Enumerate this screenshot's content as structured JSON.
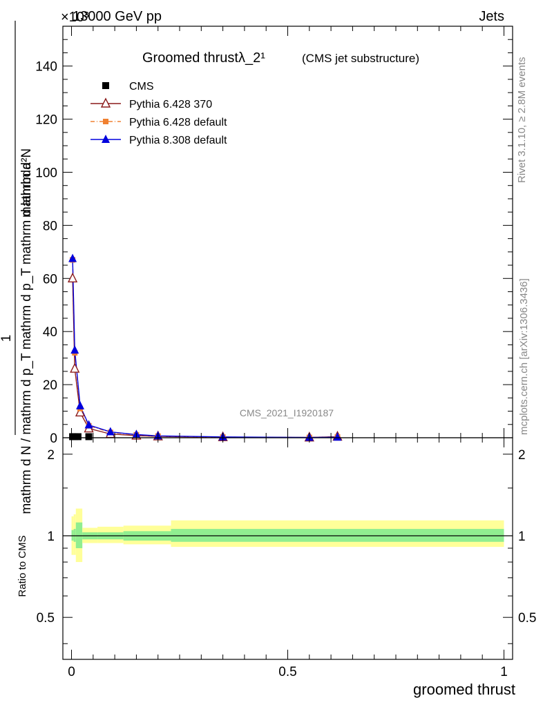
{
  "header": {
    "left": "13000 GeV pp",
    "right": "Jets",
    "exponent": "×10³"
  },
  "side_labels": {
    "rivet": "Rivet 3.1.10, ≥ 2.8M events",
    "mcplots": "mcplots.cern.ch [arXiv:1306.3436]"
  },
  "watermark": "CMS_2021_I1920187",
  "chart_data": [
    {
      "type": "line",
      "title": "Groomed thrustλ_2¹",
      "subtitle": "(CMS jet substructure)",
      "ylabel_numerator": "mathrm d²N",
      "ylabel_frac_num": "1",
      "ylabel_denominator": "mathrm d N / mathrm d p_T mathrm d p_T mathrm d lambda",
      "ylabel_top": "mathrm d²N",
      "ylabel_bottom": "mathrm d p_T mathrm d lambda",
      "ylim": [
        0,
        155
      ],
      "xlim": [
        -0.02,
        1.02
      ],
      "yticks": [
        0,
        20,
        40,
        60,
        80,
        100,
        120,
        140
      ],
      "legend_position": "top-left",
      "series": [
        {
          "name": "CMS",
          "color": "#000000",
          "marker": "square",
          "x": [
            0.0025,
            0.0075,
            0.015,
            0.04
          ],
          "y": [
            0.4,
            0.4,
            0.4,
            0.4
          ]
        },
        {
          "name": "Pythia 6.428 370",
          "color": "#8b1a1a",
          "marker": "open-triangle",
          "x": [
            0.0025,
            0.0075,
            0.02,
            0.04,
            0.09,
            0.15,
            0.2,
            0.35,
            0.55,
            0.615
          ],
          "y": [
            60,
            26,
            9.5,
            3.5,
            1.4,
            0.8,
            0.5,
            0.2,
            0.1,
            0.4
          ]
        },
        {
          "name": "Pythia 6.428 default",
          "color": "#f08030",
          "marker": "filled-square",
          "x": [
            0.0025,
            0.0075,
            0.02,
            0.04,
            0.09,
            0.15,
            0.2,
            0.35,
            0.55,
            0.615
          ],
          "y": [
            67,
            32,
            11,
            4.5,
            2.0,
            1.1,
            0.6,
            0.25,
            0.1,
            0.3
          ]
        },
        {
          "name": "Pythia 8.308 default",
          "color": "#0000dd",
          "marker": "filled-triangle",
          "x": [
            0.0025,
            0.0075,
            0.02,
            0.04,
            0.09,
            0.15,
            0.2,
            0.35,
            0.55,
            0.615
          ],
          "y": [
            67.5,
            33,
            12,
            4.8,
            2.2,
            1.2,
            0.7,
            0.3,
            0.12,
            0.2
          ]
        }
      ]
    },
    {
      "type": "area",
      "ylabel": "Ratio to CMS",
      "xlabel": "groomed thrust",
      "ylim": [
        0.35,
        2.3
      ],
      "xlim": [
        -0.02,
        1.02
      ],
      "yticks": [
        0.5,
        1,
        2
      ],
      "xticks": [
        0,
        0.5,
        1
      ],
      "reference_line": 1,
      "bands": {
        "yellow_color": "#ffff99",
        "green_color": "#90ee90",
        "bins": [
          {
            "x0": 0.0,
            "x1": 0.005,
            "yellow": [
              0.85,
              1.18
            ],
            "green": [
              0.96,
              1.05
            ]
          },
          {
            "x0": 0.005,
            "x1": 0.01,
            "yellow": [
              0.85,
              1.2
            ],
            "green": [
              0.95,
              1.06
            ]
          },
          {
            "x0": 0.01,
            "x1": 0.025,
            "yellow": [
              0.8,
              1.26
            ],
            "green": [
              0.9,
              1.12
            ]
          },
          {
            "x0": 0.025,
            "x1": 0.06,
            "yellow": [
              0.94,
              1.07
            ],
            "green": [
              0.97,
              1.03
            ]
          },
          {
            "x0": 0.06,
            "x1": 0.12,
            "yellow": [
              0.94,
              1.08
            ],
            "green": [
              0.97,
              1.03
            ]
          },
          {
            "x0": 0.12,
            "x1": 0.23,
            "yellow": [
              0.93,
              1.09
            ],
            "green": [
              0.96,
              1.04
            ]
          },
          {
            "x0": 0.23,
            "x1": 1.0,
            "yellow": [
              0.91,
              1.14
            ],
            "green": [
              0.95,
              1.06
            ]
          }
        ]
      }
    }
  ]
}
